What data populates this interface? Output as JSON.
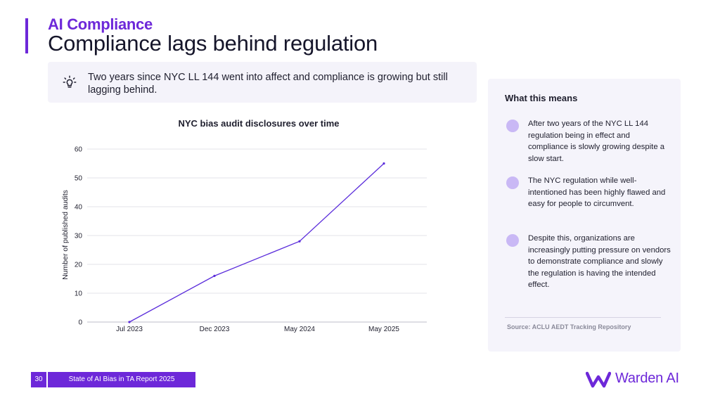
{
  "header": {
    "section_label": "AI Compliance",
    "title": "Compliance lags behind regulation"
  },
  "callout": {
    "icon": "lightbulb-icon",
    "text": "Two years since NYC LL 144 went into affect and compliance is growing but still lagging behind."
  },
  "chart_data": {
    "type": "line",
    "title": "NYC bias audit disclosures over time",
    "xlabel": "",
    "ylabel": "Number of published audits",
    "categories": [
      "Jul 2023",
      "Dec 2023",
      "May 2024",
      "May 2025"
    ],
    "series": [
      {
        "x": [
          "Jul 2023",
          "Dec 2023",
          "May 2024",
          "May 2025"
        ],
        "values": [
          0,
          16,
          28,
          55
        ]
      }
    ],
    "ylim": [
      0,
      60
    ],
    "yticks": [
      0,
      10,
      20,
      30,
      40,
      50,
      60
    ],
    "grid": true,
    "legend": "none",
    "line_color": "#5b2ddb"
  },
  "side_panel": {
    "title": "What this means",
    "points": [
      "After two years of the NYC LL 144 regulation being in effect and compliance is slowly growing despite a slow start.",
      "The NYC regulation while well-intentioned has been highly flawed and easy for people to circumvent.",
      "Despite this, organizations are increasingly putting pressure on vendors to demonstrate compliance and slowly the regulation is having the intended effect."
    ],
    "source": "Source: ACLU AEDT Tracking Repository"
  },
  "footer": {
    "page_number": "30",
    "report_name": "State of AI Bias in TA Report 2025",
    "brand": "Warden AI"
  },
  "colors": {
    "accent": "#6d28d9",
    "panel": "#f5f4fb",
    "dot": "#c9b8f5"
  }
}
